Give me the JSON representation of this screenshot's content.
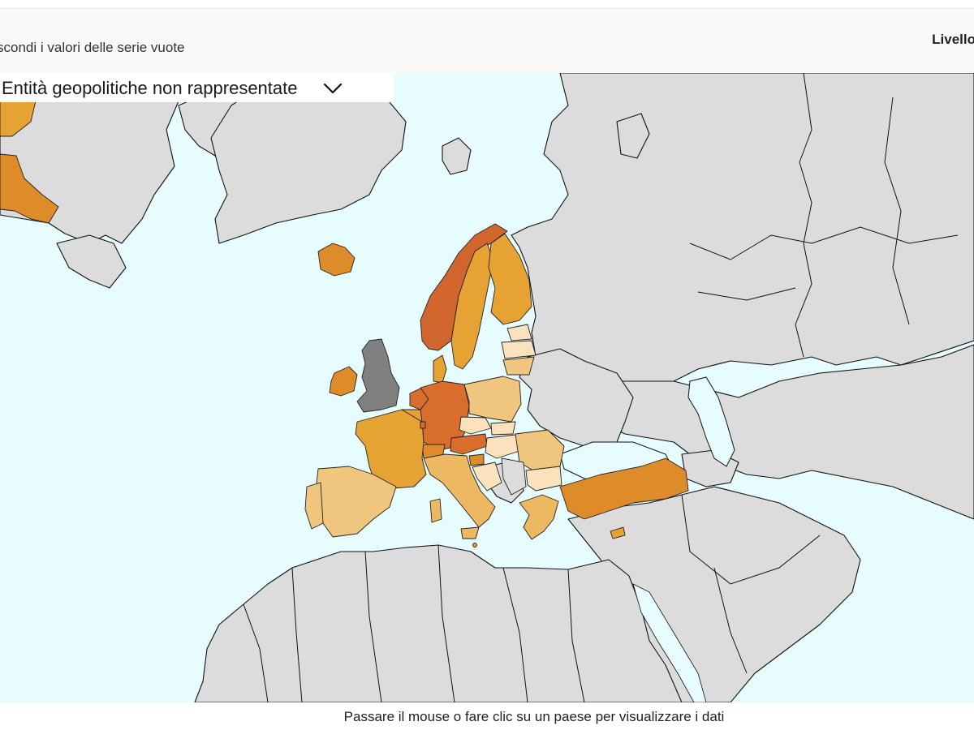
{
  "toolbar": {
    "hide_empty_label": "scondi i valori delle serie vuote",
    "level_label": "Livello"
  },
  "map_panel": {
    "dropdown_label": "Entità geopolitiche non rappresentate",
    "dropdown_icon": "chevron-down-icon"
  },
  "footer": {
    "hint": "Passare il mouse o fare clic su un paese per visualizzare i dati"
  },
  "colors": {
    "sea": "#e6fcff",
    "land_no_data": "#dcdcdc",
    "not_represented": "#808080",
    "scale_lightest": "#fae2bc",
    "scale_light": "#f0c67f",
    "scale_medium_light": "#edb862",
    "scale_medium": "#e6a333",
    "scale_medium_dark": "#de8b2a",
    "scale_dark": "#d96e2c",
    "scale_darkest": "#d2652e"
  }
}
